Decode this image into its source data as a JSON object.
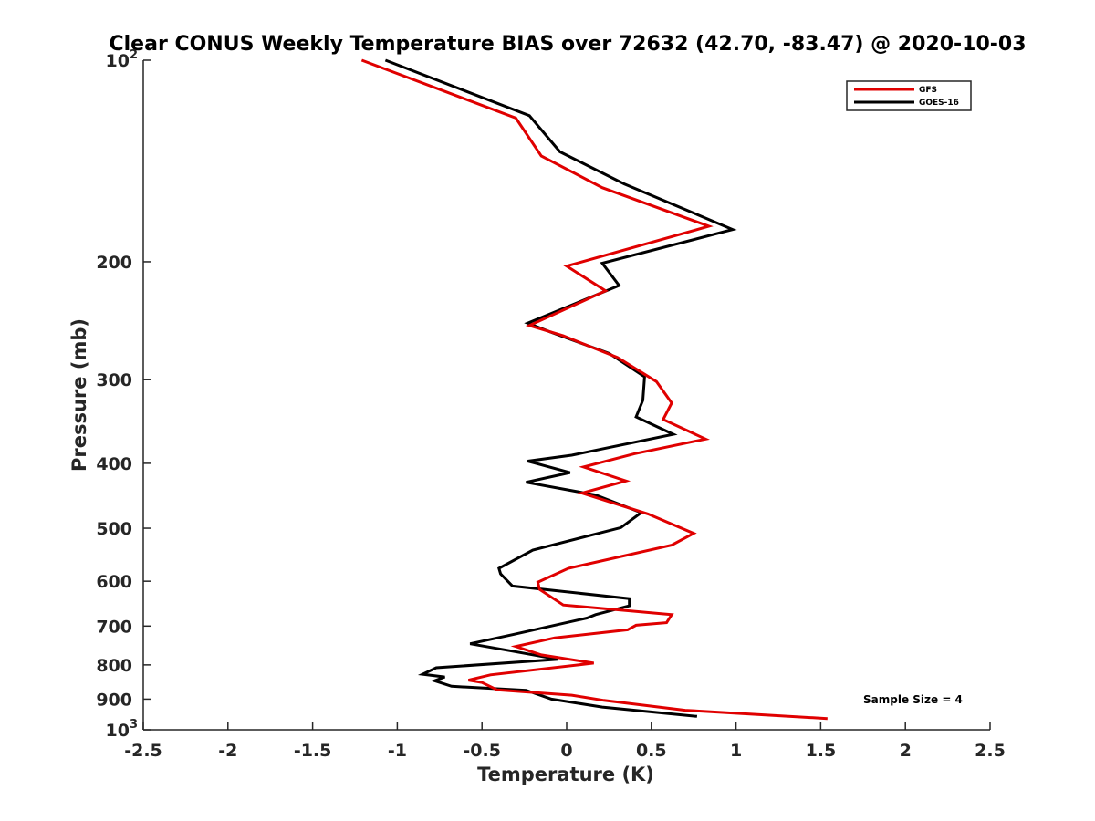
{
  "chart_data": {
    "type": "line",
    "title": "Clear CONUS Weekly Temperature BIAS over 72632 (42.70, -83.47) @ 2020-10-03",
    "xlabel": "Temperature (K)",
    "ylabel": "Pressure (mb)",
    "xlim": [
      -2.5,
      2.5
    ],
    "ylim": [
      100,
      1000
    ],
    "yscale": "log",
    "y_reversed": true,
    "grid": false,
    "legend_position": "top-right",
    "xticks": [
      "-2.5",
      "-2",
      "-1.5",
      "-1",
      "-0.5",
      "0",
      "0.5",
      "1",
      "1.5",
      "2",
      "2.5"
    ],
    "yticks": [
      {
        "value": 100,
        "label": "10",
        "sup": "2"
      },
      {
        "value": 200,
        "label": "200"
      },
      {
        "value": 300,
        "label": "300"
      },
      {
        "value": 400,
        "label": "400"
      },
      {
        "value": 500,
        "label": "500"
      },
      {
        "value": 600,
        "label": "600"
      },
      {
        "value": 700,
        "label": "700"
      },
      {
        "value": 800,
        "label": "800"
      },
      {
        "value": 900,
        "label": "900"
      },
      {
        "value": 1000,
        "label": "10",
        "sup": "3"
      }
    ],
    "annotation": "Sample Size = 4",
    "series": [
      {
        "name": "GFS",
        "color": "#e00000",
        "x": [
          -1.21,
          -0.3,
          -0.15,
          0.21,
          0.84,
          0.0,
          0.23,
          -0.22,
          -0.02,
          0.3,
          0.53,
          0.62,
          0.57,
          0.82,
          0.4,
          0.1,
          0.35,
          0.09,
          0.48,
          0.75,
          0.62,
          0.01,
          -0.17,
          -0.16,
          -0.02,
          0.62,
          0.59,
          0.41,
          0.36,
          -0.07,
          -0.3,
          -0.15,
          0.16,
          -0.45,
          -0.58,
          -0.5,
          -0.45,
          -0.41,
          0.03,
          0.22,
          0.7,
          1.54
        ],
        "y": [
          100,
          122,
          139,
          155,
          177,
          203,
          221,
          249,
          258,
          278,
          302,
          325,
          344,
          368,
          387,
          405,
          425,
          443,
          476,
          509,
          530,
          574,
          602,
          617,
          651,
          673,
          692,
          698,
          709,
          729,
          751,
          773,
          795,
          828,
          843,
          850,
          862,
          872,
          888,
          904,
          935,
          962
        ]
      },
      {
        "name": "GOES-16",
        "color": "#000000",
        "x": [
          -1.07,
          -0.22,
          -0.04,
          0.34,
          0.98,
          0.21,
          0.31,
          -0.23,
          -0.09,
          0.25,
          0.46,
          0.45,
          0.41,
          0.63,
          0.03,
          -0.23,
          0.02,
          -0.24,
          0.17,
          0.44,
          0.32,
          -0.2,
          -0.4,
          -0.39,
          -0.32,
          0.37,
          0.37,
          0.17,
          0.12,
          -0.31,
          -0.57,
          -0.32,
          -0.05,
          -0.77,
          -0.85,
          -0.72,
          -0.78,
          -0.68,
          -0.24,
          -0.09,
          0.21,
          0.77
        ],
        "y": [
          100,
          121,
          137,
          153,
          179,
          201,
          217,
          247,
          255,
          274,
          297,
          322,
          341,
          362,
          389,
          397,
          413,
          427,
          446,
          474,
          499,
          539,
          574,
          585,
          610,
          637,
          653,
          673,
          681,
          720,
          744,
          763,
          785,
          808,
          826,
          834,
          845,
          861,
          873,
          900,
          925,
          955
        ]
      }
    ]
  }
}
